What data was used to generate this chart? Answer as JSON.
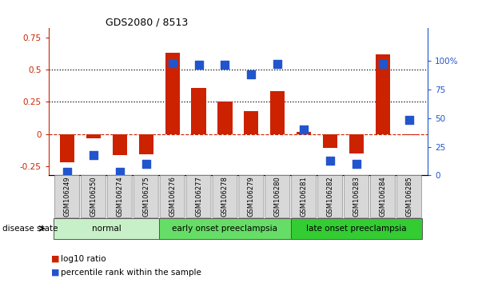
{
  "title": "GDS2080 / 8513",
  "samples": [
    "GSM106249",
    "GSM106250",
    "GSM106274",
    "GSM106275",
    "GSM106276",
    "GSM106277",
    "GSM106278",
    "GSM106279",
    "GSM106280",
    "GSM106281",
    "GSM106282",
    "GSM106283",
    "GSM106284",
    "GSM106285"
  ],
  "log10_ratio": [
    -0.22,
    -0.03,
    -0.16,
    -0.155,
    0.63,
    0.355,
    0.255,
    0.18,
    0.335,
    0.02,
    -0.105,
    -0.15,
    0.62,
    -0.01
  ],
  "percentile_rank": [
    3,
    18,
    3,
    10,
    98,
    96,
    96,
    88,
    97,
    40,
    13,
    10,
    97,
    48
  ],
  "groups": [
    {
      "label": "normal",
      "start": 0,
      "end": 3,
      "color": "#c8f0c8"
    },
    {
      "label": "early onset preeclampsia",
      "start": 4,
      "end": 8,
      "color": "#66dd66"
    },
    {
      "label": "late onset preeclampsia",
      "start": 9,
      "end": 13,
      "color": "#33cc33"
    }
  ],
  "bar_color": "#cc2200",
  "dot_color": "#2255cc",
  "left_ylim": [
    -0.32,
    0.82
  ],
  "right_ylim": [
    0,
    128
  ],
  "left_yticks": [
    -0.25,
    0,
    0.25,
    0.5,
    0.75
  ],
  "right_yticks": [
    0,
    25,
    50,
    75,
    100
  ],
  "right_yticklabels": [
    "0",
    "25",
    "50",
    "75",
    "100%"
  ],
  "hlines": [
    0.25,
    0.5
  ],
  "bar_width": 0.55,
  "dot_size": 45,
  "group_row_color": "#d0d0d0",
  "group_border_color": "#555555"
}
